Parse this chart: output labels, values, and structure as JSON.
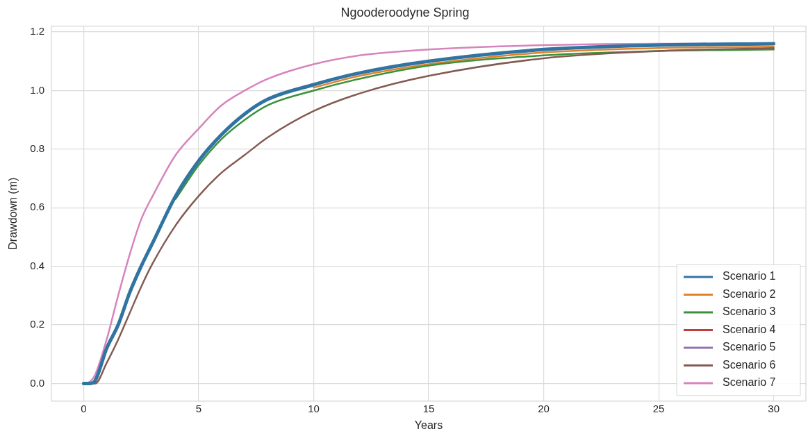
{
  "chart_data": {
    "type": "line",
    "title": "Ngooderoodyne Spring",
    "xlabel": "Years",
    "ylabel": "Drawdown (m)",
    "x": [
      0,
      0.25,
      0.5,
      1,
      1.5,
      2,
      2.5,
      3,
      4,
      5,
      6,
      7,
      8,
      10,
      12,
      15,
      20,
      25,
      30
    ],
    "series": [
      {
        "name": "Scenario 1",
        "color": "#3274a1",
        "values": [
          0,
          0,
          0.01,
          0.12,
          0.2,
          0.31,
          0.4,
          0.48,
          0.64,
          0.76,
          0.85,
          0.92,
          0.97,
          1.02,
          1.06,
          1.1,
          1.14,
          1.155,
          1.16
        ]
      },
      {
        "name": "Scenario 2",
        "color": "#e1812c",
        "values": [
          null,
          null,
          null,
          null,
          null,
          null,
          null,
          null,
          null,
          null,
          null,
          null,
          null,
          1.01,
          1.05,
          1.09,
          1.13,
          1.145,
          1.15
        ]
      },
      {
        "name": "Scenario 3",
        "color": "#3a923a",
        "values": [
          null,
          null,
          null,
          null,
          null,
          null,
          null,
          null,
          0.63,
          0.745,
          0.835,
          0.9,
          0.95,
          1.0,
          1.04,
          1.085,
          1.12,
          1.135,
          1.14
        ]
      },
      {
        "name": "Scenario 4",
        "color": "#c03d3e",
        "values": [
          null,
          null,
          null,
          null,
          null,
          null,
          null,
          null,
          null,
          null,
          null,
          null,
          null,
          null,
          null,
          null,
          null,
          null,
          null
        ]
      },
      {
        "name": "Scenario 5",
        "color": "#9372b2",
        "values": [
          null,
          null,
          null,
          null,
          null,
          null,
          null,
          null,
          null,
          null,
          null,
          null,
          null,
          null,
          null,
          null,
          null,
          null,
          null
        ]
      },
      {
        "name": "Scenario 6",
        "color": "#845b53",
        "values": [
          0,
          0,
          0,
          0.07,
          0.15,
          0.24,
          0.33,
          0.41,
          0.54,
          0.64,
          0.72,
          0.78,
          0.84,
          0.93,
          0.99,
          1.05,
          1.11,
          1.135,
          1.145
        ]
      },
      {
        "name": "Scenario 7",
        "color": "#d684bd",
        "values": [
          0,
          0.005,
          0.03,
          0.15,
          0.3,
          0.44,
          0.56,
          0.64,
          0.78,
          0.87,
          0.95,
          1.0,
          1.04,
          1.09,
          1.12,
          1.14,
          1.155,
          1.16,
          1.16
        ]
      }
    ],
    "xlim": [
      -1.4,
      31.4
    ],
    "xticks": [
      0,
      5,
      10,
      15,
      20,
      25,
      30
    ],
    "ylim": [
      -0.06,
      1.22
    ],
    "yticks": [
      {
        "value": 0,
        "label": "0.0"
      },
      0.2,
      0.4,
      0.6,
      0.8,
      {
        "value": 1,
        "label": "1.0"
      },
      1.2
    ],
    "grid": true,
    "legend": "bottom right",
    "line_style": "solid",
    "marker": "none"
  }
}
